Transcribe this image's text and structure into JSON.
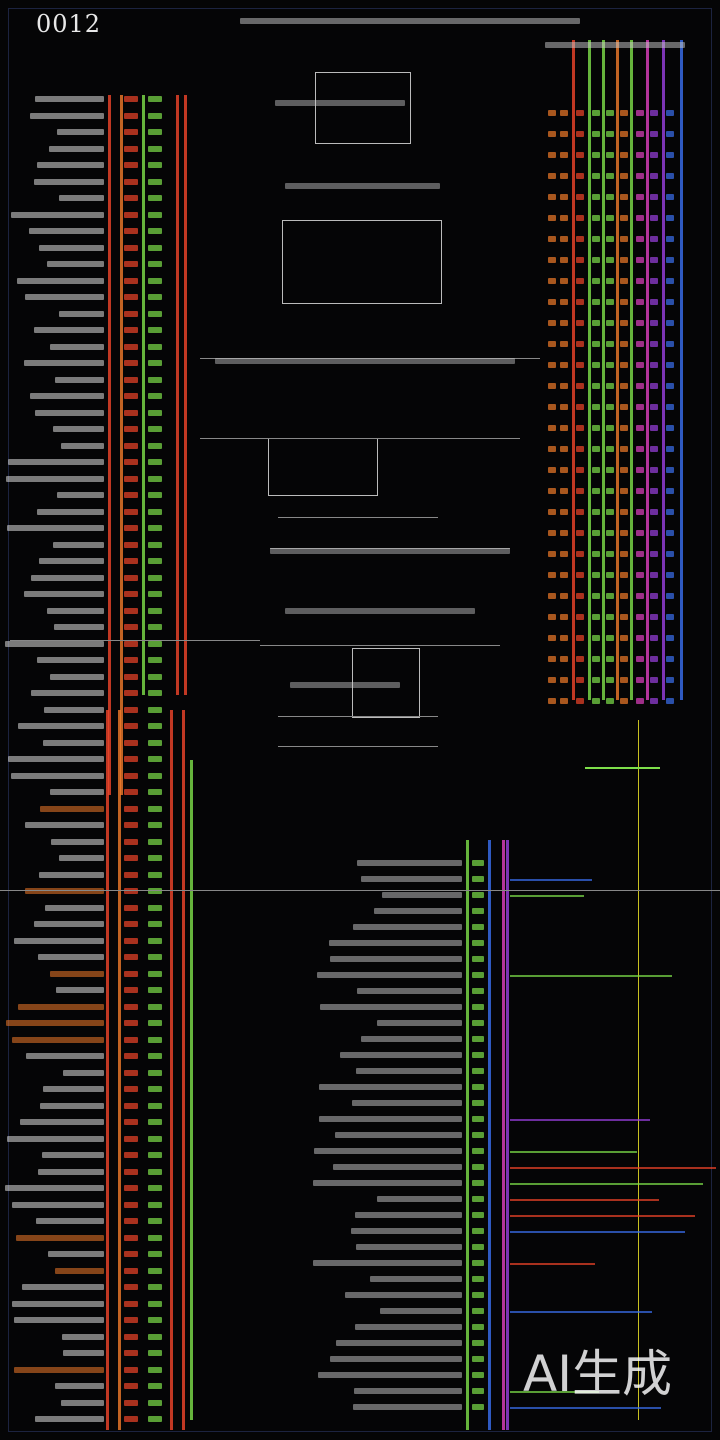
{
  "header": {
    "title": "0012"
  },
  "watermark": "AI生成",
  "colors": {
    "background": "#050506",
    "red": "#f0452a",
    "green": "#7ee04a",
    "orange": "#f07a2a",
    "magenta": "#e040c0",
    "blue": "#3a6ff0",
    "purple": "#9a40e0",
    "white": "#e8e8e8"
  }
}
